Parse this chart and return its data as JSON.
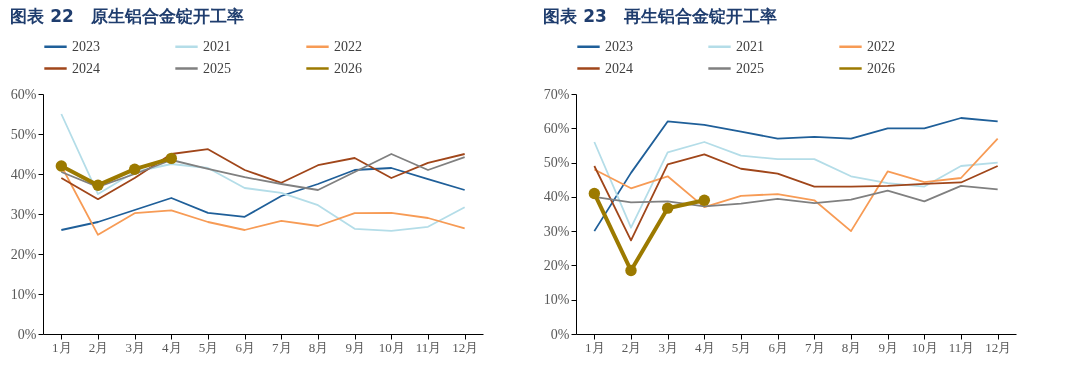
{
  "chart_data": [
    {
      "type": "line",
      "title": "图表 22　原生铝合金锭开工率",
      "categories": [
        "1月",
        "2月",
        "3月",
        "4月",
        "5月",
        "6月",
        "7月",
        "8月",
        "9月",
        "10月",
        "11月",
        "12月"
      ],
      "ylim": [
        0,
        60
      ],
      "yticks": [
        {
          "value": 0,
          "label": "0%"
        },
        {
          "value": 10,
          "label": "10%"
        },
        {
          "value": 20,
          "label": "20%"
        },
        {
          "value": 30,
          "label": "30%"
        },
        {
          "value": 40,
          "label": "40%"
        },
        {
          "value": 50,
          "label": "50%"
        },
        {
          "value": 60,
          "label": "60%"
        }
      ],
      "grid": false,
      "legend": "top",
      "series": [
        {
          "name": "2023",
          "color": "#1f5f99",
          "values": [
            26,
            28,
            31,
            34,
            30.3,
            29.3,
            34.5,
            37.5,
            41,
            41.5,
            38.7,
            36
          ]
        },
        {
          "name": "2021",
          "color": "#b4dde8",
          "values": [
            55,
            35,
            40.5,
            42.5,
            41.5,
            36.5,
            35.3,
            32.2,
            26.3,
            25.8,
            26.8,
            31.7
          ]
        },
        {
          "name": "2022",
          "color": "#f79b55",
          "values": [
            42,
            24.8,
            30.2,
            30.9,
            28,
            26,
            28.3,
            27,
            30.2,
            30.3,
            29,
            26.4
          ]
        },
        {
          "name": "2024",
          "color": "#a0461a",
          "values": [
            39,
            33.7,
            39,
            45,
            46.2,
            41,
            37.8,
            42.2,
            44,
            39,
            42.8,
            45
          ]
        },
        {
          "name": "2025",
          "color": "#808080",
          "values": [
            40.5,
            36.8,
            40,
            43.5,
            41.3,
            39.2,
            37.5,
            36,
            40.5,
            45,
            41,
            44.2
          ]
        },
        {
          "name": "2026",
          "color": "#9c7a00",
          "marker": "circle",
          "values": [
            42,
            37.2,
            41.2,
            43.9,
            null,
            null,
            null,
            null,
            null,
            null,
            null,
            null
          ]
        }
      ]
    },
    {
      "type": "line",
      "title": "图表 23　再生铝合金锭开工率",
      "categories": [
        "1月",
        "2月",
        "3月",
        "4月",
        "5月",
        "6月",
        "7月",
        "8月",
        "9月",
        "10月",
        "11月",
        "12月"
      ],
      "ylim": [
        0,
        70
      ],
      "yticks": [
        {
          "value": 0,
          "label": "0%"
        },
        {
          "value": 10,
          "label": "10%"
        },
        {
          "value": 20,
          "label": "20%"
        },
        {
          "value": 30,
          "label": "30%"
        },
        {
          "value": 40,
          "label": "40%"
        },
        {
          "value": 50,
          "label": "50%"
        },
        {
          "value": 60,
          "label": "60%"
        },
        {
          "value": 70,
          "label": "70%"
        }
      ],
      "grid": false,
      "legend": "top",
      "series": [
        {
          "name": "2023",
          "color": "#1f5f99",
          "values": [
            30,
            47,
            62,
            61,
            59,
            57,
            57.5,
            57,
            60,
            60,
            63,
            62
          ]
        },
        {
          "name": "2021",
          "color": "#b4dde8",
          "values": [
            56,
            31,
            53,
            56,
            52,
            51,
            51,
            46,
            44,
            43,
            49,
            50
          ]
        },
        {
          "name": "2022",
          "color": "#f79b55",
          "values": [
            48,
            42.5,
            46,
            37,
            40.3,
            40.8,
            39,
            30,
            47.4,
            44.3,
            45.5,
            57
          ]
        },
        {
          "name": "2024",
          "color": "#a0461a",
          "values": [
            49,
            27.3,
            49.5,
            52.4,
            48.2,
            46.8,
            43,
            43,
            43.2,
            43.8,
            44.2,
            49
          ]
        },
        {
          "name": "2025",
          "color": "#808080",
          "values": [
            40,
            38.4,
            38.7,
            37.2,
            38,
            39.4,
            38.2,
            39.2,
            41.8,
            38.7,
            43.2,
            42.2
          ]
        },
        {
          "name": "2026",
          "color": "#9c7a00",
          "marker": "circle",
          "values": [
            41,
            18.5,
            36.7,
            39,
            null,
            null,
            null,
            null,
            null,
            null,
            null,
            null
          ]
        }
      ]
    }
  ]
}
